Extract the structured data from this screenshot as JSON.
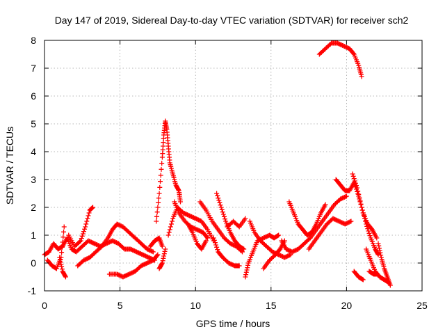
{
  "chart_data": {
    "type": "scatter",
    "title": "Day 147 of 2019, Sidereal Day-to-day VTEC variation (SDTVAR) for receiver sch2",
    "xlabel": "GPS time / hours",
    "ylabel": "SDTVAR / TECUs",
    "xlim": [
      0,
      25
    ],
    "ylim": [
      -1,
      8
    ],
    "xticks": [
      "0",
      "5",
      "10",
      "15",
      "20",
      "25"
    ],
    "yticks": [
      "-1",
      "0",
      "1",
      "2",
      "3",
      "4",
      "5",
      "6",
      "7",
      "8"
    ],
    "grid": true,
    "marker": "+",
    "series": [
      {
        "name": "SDTVAR",
        "color": "#ff0000",
        "tracks": [
          {
            "x": [
              0.0,
              0.3,
              0.6,
              0.9,
              1.2,
              1.5,
              1.8,
              2.1,
              2.5,
              2.9,
              3.3,
              3.7,
              4.1,
              4.5,
              4.9,
              5.3,
              5.7,
              6.1,
              6.5,
              6.9,
              7.3
            ],
            "y": [
              0.3,
              0.4,
              0.7,
              0.5,
              0.6,
              0.9,
              0.5,
              0.4,
              0.6,
              0.8,
              0.7,
              0.6,
              0.7,
              0.8,
              0.7,
              0.5,
              0.5,
              0.4,
              0.3,
              0.2,
              0.1
            ]
          },
          {
            "x": [
              0.2,
              0.5,
              0.8,
              1.1,
              1.3
            ],
            "y": [
              0.1,
              -0.1,
              -0.2,
              0.2,
              1.3
            ]
          },
          {
            "x": [
              1.0,
              1.2,
              1.4
            ],
            "y": [
              0.2,
              -0.3,
              -0.5
            ]
          },
          {
            "x": [
              1.6,
              2.0,
              2.4,
              2.7,
              3.0,
              3.2
            ],
            "y": [
              1.0,
              0.6,
              0.8,
              1.3,
              1.9,
              2.0
            ]
          },
          {
            "x": [
              2.2,
              2.6,
              3.0,
              3.4,
              3.8,
              4.2,
              4.5,
              4.8,
              5.2,
              5.6,
              6.0,
              6.4,
              6.8,
              7.2
            ],
            "y": [
              -0.1,
              0.1,
              0.2,
              0.4,
              0.6,
              0.9,
              1.2,
              1.4,
              1.3,
              1.1,
              0.9,
              0.7,
              0.5,
              0.4
            ]
          },
          {
            "x": [
              4.3,
              4.8,
              5.2,
              5.6,
              6.0,
              6.4,
              6.8,
              7.2,
              7.5
            ],
            "y": [
              -0.4,
              -0.4,
              -0.5,
              -0.4,
              -0.3,
              -0.1,
              0.0,
              0.1,
              0.3
            ]
          },
          {
            "x": [
              7.0,
              7.3,
              7.6,
              7.8
            ],
            "y": [
              0.6,
              0.8,
              0.9,
              0.6
            ]
          },
          {
            "x": [
              7.6,
              7.8,
              8.0
            ],
            "y": [
              -0.2,
              0.0,
              0.5
            ]
          },
          {
            "x": [
              7.4,
              7.6,
              7.8,
              7.9,
              8.0,
              8.1,
              8.2,
              8.3,
              8.5,
              8.7,
              8.9,
              9.0
            ],
            "y": [
              1.5,
              2.5,
              3.8,
              4.6,
              5.1,
              4.8,
              4.2,
              3.6,
              3.2,
              2.8,
              2.6,
              2.2
            ]
          },
          {
            "x": [
              8.2,
              8.5,
              8.8,
              9.2,
              9.6,
              10.0,
              10.4,
              10.8,
              11.2
            ],
            "y": [
              1.0,
              1.6,
              2.0,
              1.8,
              1.7,
              1.6,
              1.5,
              1.2,
              0.8
            ]
          },
          {
            "x": [
              8.6,
              8.9,
              9.3,
              9.7,
              10.1,
              10.5,
              10.8
            ],
            "y": [
              2.2,
              1.8,
              1.5,
              1.3,
              1.2,
              1.1,
              0.9
            ]
          },
          {
            "x": [
              9.5,
              9.8,
              10.1,
              10.4,
              10.7
            ],
            "y": [
              1.4,
              1.1,
              0.7,
              0.5,
              0.8
            ]
          },
          {
            "x": [
              10.3,
              10.7,
              11.1,
              11.5,
              11.9,
              12.3,
              12.7,
              13.1
            ],
            "y": [
              2.2,
              1.9,
              1.5,
              1.2,
              0.9,
              0.7,
              0.6,
              0.4
            ]
          },
          {
            "x": [
              11.4,
              11.7,
              12.0,
              12.3,
              12.6,
              12.9,
              13.2
            ],
            "y": [
              2.5,
              2.0,
              1.5,
              1.1,
              0.8,
              0.6,
              0.5
            ]
          },
          {
            "x": [
              11.2,
              11.5,
              11.8,
              12.2,
              12.6,
              12.9
            ],
            "y": [
              0.9,
              0.4,
              0.2,
              0.0,
              -0.1,
              -0.1
            ]
          },
          {
            "x": [
              12.1,
              12.5,
              12.9,
              13.3
            ],
            "y": [
              1.3,
              1.5,
              1.3,
              1.6
            ]
          },
          {
            "x": [
              13.3,
              13.5,
              13.8,
              14.1,
              14.5,
              14.9,
              15.2,
              15.5
            ],
            "y": [
              -0.5,
              0.0,
              0.4,
              0.8,
              0.9,
              1.0,
              0.9,
              1.0
            ]
          },
          {
            "x": [
              13.6,
              13.9,
              14.3,
              14.7,
              15.1,
              15.5,
              15.9,
              16.3
            ],
            "y": [
              1.5,
              1.1,
              0.8,
              0.6,
              0.4,
              0.3,
              0.2,
              0.3
            ]
          },
          {
            "x": [
              14.5,
              14.9,
              15.3,
              15.6,
              15.9
            ],
            "y": [
              -0.2,
              0.1,
              0.3,
              0.5,
              0.8
            ]
          },
          {
            "x": [
              15.7,
              16.0,
              16.4,
              16.8,
              17.2,
              17.6,
              18.0,
              18.4,
              18.8,
              19.2,
              19.6,
              20.0
            ],
            "y": [
              0.8,
              0.5,
              0.4,
              0.5,
              0.7,
              0.9,
              1.2,
              1.5,
              1.8,
              2.1,
              2.3,
              2.4
            ]
          },
          {
            "x": [
              16.2,
              16.5,
              16.8,
              17.1,
              17.4,
              17.7,
              18.0,
              18.3,
              18.6
            ],
            "y": [
              2.2,
              1.8,
              1.4,
              1.2,
              1.0,
              1.1,
              1.4,
              1.8,
              2.1
            ]
          },
          {
            "x": [
              17.5,
              17.9,
              18.3,
              18.7,
              19.1,
              19.5,
              19.9,
              20.3
            ],
            "y": [
              0.5,
              0.8,
              1.1,
              1.4,
              1.6,
              1.5,
              1.4,
              1.5
            ]
          },
          {
            "x": [
              19.3,
              19.6,
              19.9,
              20.2,
              20.5,
              20.8,
              21.1,
              21.4,
              21.7,
              22.0
            ],
            "y": [
              3.0,
              2.8,
              2.6,
              2.6,
              2.9,
              2.4,
              1.8,
              1.4,
              1.2,
              0.9
            ]
          },
          {
            "x": [
              20.4,
              20.7,
              21.0,
              21.3,
              21.6,
              21.9,
              22.1
            ],
            "y": [
              3.2,
              2.7,
              2.0,
              1.4,
              0.9,
              0.5,
              0.3
            ]
          },
          {
            "x": [
              20.5,
              20.8,
              21.1
            ],
            "y": [
              -0.3,
              -0.5,
              -0.6
            ]
          },
          {
            "x": [
              21.3,
              21.6,
              21.9,
              22.2,
              22.5,
              22.8
            ],
            "y": [
              0.5,
              0.1,
              -0.3,
              -0.5,
              -0.6,
              -0.7
            ]
          },
          {
            "x": [
              22.1,
              22.3,
              22.5,
              22.7,
              22.9
            ],
            "y": [
              0.7,
              0.2,
              -0.2,
              -0.5,
              -0.8
            ]
          },
          {
            "x": [
              21.5,
              21.8,
              22.0
            ],
            "y": [
              -0.3,
              -0.4,
              -0.4
            ]
          },
          {
            "x": [
              18.2,
              18.6,
              19.0,
              19.4,
              19.8,
              20.2,
              20.5,
              20.8,
              21.0
            ],
            "y": [
              7.5,
              7.7,
              7.9,
              7.9,
              7.8,
              7.7,
              7.5,
              7.1,
              6.7
            ]
          }
        ]
      }
    ]
  }
}
